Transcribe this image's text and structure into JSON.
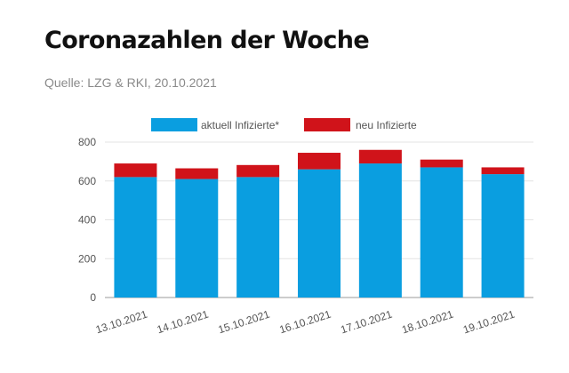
{
  "header": {
    "title": "Coronazahlen der Woche",
    "source": "Quelle: LZG & RKI, 20.10.2021"
  },
  "colors": {
    "current": "#0a9ee0",
    "new": "#d0131a"
  },
  "chart_data": {
    "type": "bar",
    "stacked": true,
    "categories": [
      "13.10.2021",
      "14.10.2021",
      "15.10.2021",
      "16.10.2021",
      "17.10.2021",
      "18.10.2021",
      "19.10.2021"
    ],
    "series": [
      {
        "name": "aktuell Infizierte*",
        "values": [
          620,
          610,
          620,
          660,
          690,
          670,
          635
        ]
      },
      {
        "name": "neu Infizierte",
        "values": [
          70,
          55,
          62,
          85,
          70,
          40,
          35
        ]
      }
    ],
    "yticks": [
      0,
      200,
      400,
      600,
      800
    ],
    "ylim": [
      0,
      800
    ],
    "grid": true,
    "legend": "top-center"
  }
}
